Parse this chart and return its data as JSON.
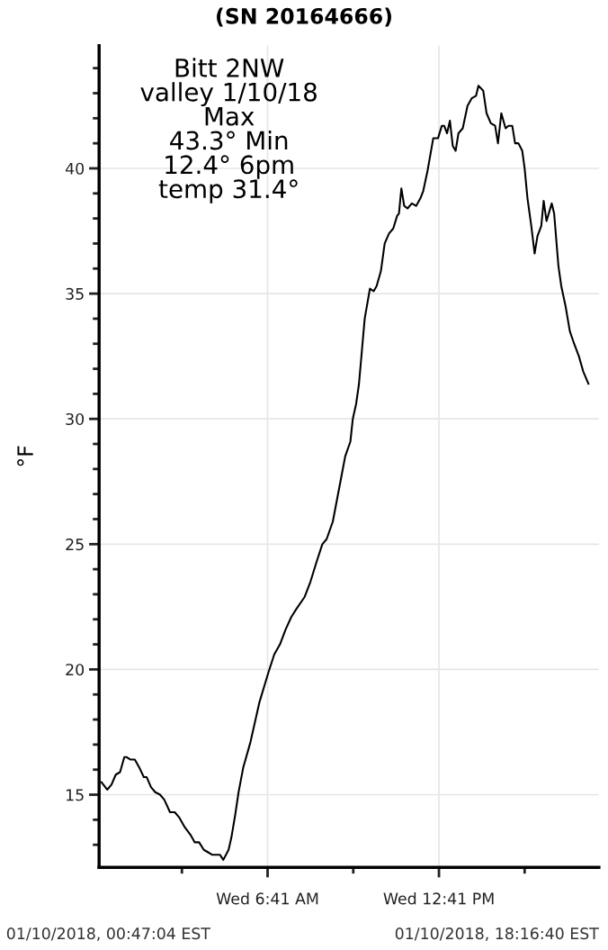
{
  "chart_data": {
    "type": "line",
    "title": "(SN 20164666)",
    "ylabel": "°F",
    "annotations": [
      "Bitt 2NW\nvalley 1/10/18\nMax\n43.3° Min\n12.4° 6pm\ntemp 31.4°",
      "01/10/2018, 00:47:04 EST",
      "01/10/2018, 18:16:40 EST"
    ],
    "series": [
      {
        "color": "#000000",
        "x": [
          "2018-01-10T00:52",
          "2018-01-10T01:04",
          "2018-01-10T01:13",
          "2018-01-10T01:22",
          "2018-01-10T01:31",
          "2018-01-10T01:40",
          "2018-01-10T01:45",
          "2018-01-10T01:53",
          "2018-01-10T02:02",
          "2018-01-10T02:11",
          "2018-01-10T02:21",
          "2018-01-10T02:27",
          "2018-01-10T02:36",
          "2018-01-10T02:45",
          "2018-01-10T02:55",
          "2018-01-10T03:04",
          "2018-01-10T03:16",
          "2018-01-10T03:26",
          "2018-01-10T03:35",
          "2018-01-10T03:47",
          "2018-01-10T03:59",
          "2018-01-10T04:08",
          "2018-01-10T04:17",
          "2018-01-10T04:27",
          "2018-01-10T04:36",
          "2018-01-10T04:45",
          "2018-01-10T05:01",
          "2018-01-10T05:08",
          "2018-01-10T05:19",
          "2018-01-10T05:25",
          "2018-01-10T05:33",
          "2018-01-10T05:40",
          "2018-01-10T05:50",
          "2018-01-10T06:05",
          "2018-01-10T06:24",
          "2018-01-10T06:43",
          "2018-01-10T06:55",
          "2018-01-10T07:07",
          "2018-01-10T07:19",
          "2018-01-10T07:31",
          "2018-01-10T07:41",
          "2018-01-10T07:59",
          "2018-01-10T08:11",
          "2018-01-10T08:24",
          "2018-01-10T08:36",
          "2018-01-10T08:45",
          "2018-01-10T08:58",
          "2018-01-10T09:07",
          "2018-01-10T09:16",
          "2018-01-10T09:24",
          "2018-01-10T09:35",
          "2018-01-10T09:40",
          "2018-01-10T09:47",
          "2018-01-10T09:53",
          "2018-01-10T10:05",
          "2018-01-10T10:16",
          "2018-01-10T10:24",
          "2018-01-10T10:30",
          "2018-01-10T10:39",
          "2018-01-10T10:47",
          "2018-01-10T10:56",
          "2018-01-10T11:05",
          "2018-01-10T11:13",
          "2018-01-10T11:17",
          "2018-01-10T11:22",
          "2018-01-10T11:28",
          "2018-01-10T11:35",
          "2018-01-10T11:44",
          "2018-01-10T11:53",
          "2018-01-10T12:02",
          "2018-01-10T12:08",
          "2018-01-10T12:17",
          "2018-01-10T12:29",
          "2018-01-10T12:39",
          "2018-01-10T12:47",
          "2018-01-10T12:52",
          "2018-01-10T12:58",
          "2018-01-10T13:04",
          "2018-01-10T13:10",
          "2018-01-10T13:16",
          "2018-01-10T13:22",
          "2018-01-10T13:31",
          "2018-01-10T13:41",
          "2018-01-10T13:50",
          "2018-01-10T13:59",
          "2018-01-10T14:04",
          "2018-01-10T14:14",
          "2018-01-10T14:21",
          "2018-01-10T14:30",
          "2018-01-10T14:39",
          "2018-01-10T14:45",
          "2018-01-10T14:52",
          "2018-01-10T15:01",
          "2018-01-10T15:07",
          "2018-01-10T15:15",
          "2018-01-10T15:21",
          "2018-01-10T15:28",
          "2018-01-10T15:36",
          "2018-01-10T15:41",
          "2018-01-10T15:47",
          "2018-01-10T15:55",
          "2018-01-10T16:02",
          "2018-01-10T16:08",
          "2018-01-10T16:16",
          "2018-01-10T16:21",
          "2018-01-10T16:27",
          "2018-01-10T16:38",
          "2018-01-10T16:43",
          "2018-01-10T16:52",
          "2018-01-10T16:58",
          "2018-01-10T17:07",
          "2018-01-10T17:16",
          "2018-01-10T17:25",
          "2018-01-10T17:35",
          "2018-01-10T17:44",
          "2018-01-10T17:55"
        ],
        "values": [
          15.5,
          15.2,
          15.4,
          15.8,
          15.9,
          16.5,
          16.5,
          16.4,
          16.4,
          16.1,
          15.7,
          15.7,
          15.3,
          15.1,
          15.0,
          14.8,
          14.3,
          14.3,
          14.1,
          13.7,
          13.4,
          13.1,
          13.1,
          12.8,
          12.7,
          12.6,
          12.6,
          12.4,
          12.8,
          13.3,
          14.2,
          15.1,
          16.1,
          17.1,
          18.7,
          19.9,
          20.6,
          21.0,
          21.6,
          22.1,
          22.4,
          22.9,
          23.5,
          24.3,
          25.0,
          25.2,
          25.9,
          26.8,
          27.7,
          28.5,
          29.1,
          30.0,
          30.6,
          31.4,
          34.0,
          35.2,
          35.1,
          35.3,
          35.9,
          37.0,
          37.4,
          37.6,
          38.1,
          38.2,
          39.2,
          38.5,
          38.4,
          38.6,
          38.5,
          38.8,
          39.1,
          39.9,
          41.2,
          41.2,
          41.7,
          41.7,
          41.4,
          41.9,
          40.9,
          40.7,
          41.4,
          41.6,
          42.5,
          42.8,
          42.9,
          43.3,
          43.1,
          42.2,
          41.8,
          41.7,
          41.0,
          42.2,
          41.6,
          41.7,
          41.7,
          41.0,
          41.0,
          40.7,
          40.0,
          38.8,
          37.7,
          36.6,
          37.3,
          37.7,
          38.7,
          37.9,
          38.6,
          38.2,
          36.1,
          35.3,
          34.5,
          33.5,
          33.0,
          32.5,
          31.9,
          31.4
        ]
      }
    ],
    "xlim": [
      "2018-01-10T00:47",
      "2018-01-10T18:17"
    ],
    "xticks": [
      {
        "value": "2018-01-10T03:41",
        "label": null
      },
      {
        "value": "2018-01-10T06:41",
        "label": "Wed 6:41 AM"
      },
      {
        "value": "2018-01-10T09:41",
        "label": null
      },
      {
        "value": "2018-01-10T12:41",
        "label": "Wed 12:41 PM"
      },
      {
        "value": "2018-01-10T15:41",
        "label": null
      }
    ],
    "ylim": [
      12.1,
      44.9
    ],
    "yticks": [
      {
        "value": 13,
        "label": null
      },
      {
        "value": 14,
        "label": null
      },
      15,
      {
        "value": 16,
        "label": null
      },
      {
        "value": 17,
        "label": null
      },
      {
        "value": 18,
        "label": null
      },
      {
        "value": 19,
        "label": null
      },
      20,
      {
        "value": 21,
        "label": null
      },
      {
        "value": 22,
        "label": null
      },
      {
        "value": 23,
        "label": null
      },
      {
        "value": 24,
        "label": null
      },
      25,
      {
        "value": 26,
        "label": null
      },
      {
        "value": 27,
        "label": null
      },
      {
        "value": 28,
        "label": null
      },
      {
        "value": 29,
        "label": null
      },
      30,
      {
        "value": 31,
        "label": null
      },
      {
        "value": 32,
        "label": null
      },
      {
        "value": 33,
        "label": null
      },
      {
        "value": 34,
        "label": null
      },
      35,
      {
        "value": 36,
        "label": null
      },
      {
        "value": 37,
        "label": null
      },
      {
        "value": 38,
        "label": null
      },
      {
        "value": 39,
        "label": null
      },
      40,
      {
        "value": 41,
        "label": null
      },
      {
        "value": 42,
        "label": null
      },
      {
        "value": 43,
        "label": null
      },
      {
        "value": 44,
        "label": null
      }
    ],
    "grid": true,
    "marker": "none",
    "line_style": "solid"
  }
}
